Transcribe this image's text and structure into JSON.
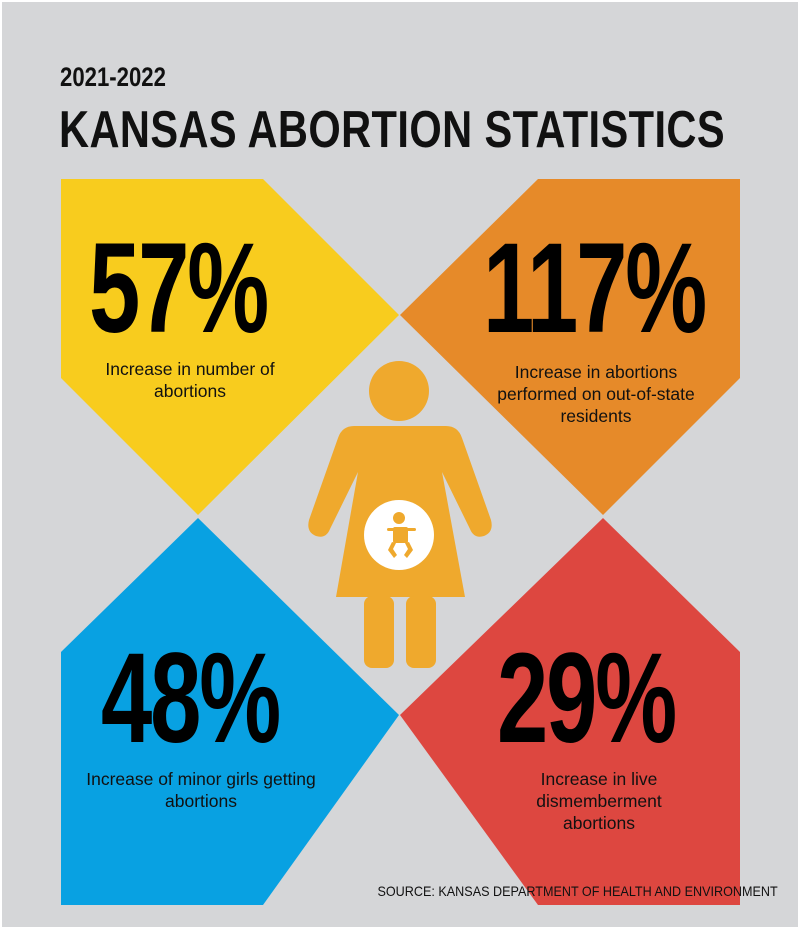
{
  "header": {
    "years": "2021-2022",
    "title": "KANSAS ABORTION STATISTICS"
  },
  "stats": [
    {
      "value": "57%",
      "label": "Increase in number of abortions",
      "color": "#f8cc1e"
    },
    {
      "value": "117%",
      "label": "Increase in abortions performed on out-of-state residents",
      "color": "#e68a29"
    },
    {
      "value": "48%",
      "label": "Increase of minor girls getting abortions",
      "color": "#08a1e2"
    },
    {
      "value": "29%",
      "label": "Increase in live dismemberment abortions",
      "color": "#dd4740"
    }
  ],
  "figure_color": "#efa92d",
  "source": "SOURCE: KANSAS DEPARTMENT OF HEALTH AND ENVIRONMENT"
}
